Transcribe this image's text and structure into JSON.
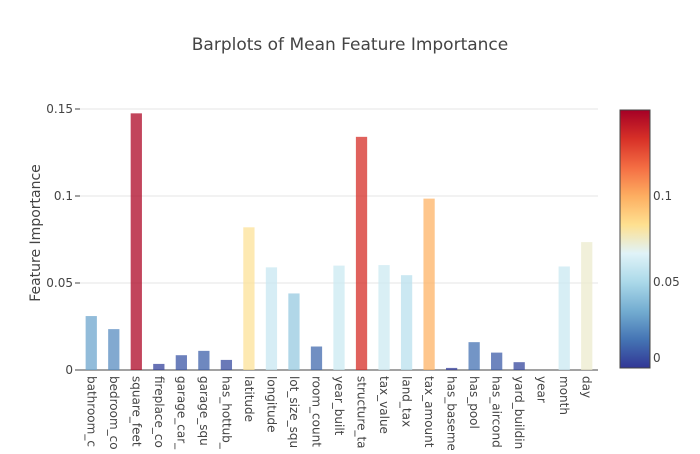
{
  "chart_data": {
    "type": "bar",
    "title": "Barplots of Mean Feature Importance",
    "xlabel": "",
    "ylabel": "Feature Importance",
    "ylim": [
      0,
      0.15
    ],
    "grid": true,
    "yticks": [
      {
        "value": 0,
        "label": "0"
      },
      {
        "value": 0.05,
        "label": "0.05"
      },
      {
        "value": 0.1,
        "label": "0.1"
      },
      {
        "value": 0.15,
        "label": "0.15"
      }
    ],
    "categories": [
      "bathroom_c",
      "bedroom_co",
      "square_feet",
      "fireplace_co",
      "garage_car_",
      "garage_squ",
      "has_hottub_",
      "latitude",
      "longitude",
      "lot_size_squ",
      "room_count",
      "year_built",
      "structure_ta",
      "tax_value",
      "land_tax",
      "tax_amount",
      "has_baseme",
      "has_pool",
      "has_aircond",
      "yard_buildin",
      "year",
      "month",
      "day"
    ],
    "values": [
      0.031,
      0.0235,
      0.1475,
      0.0035,
      0.0085,
      0.011,
      0.0058,
      0.082,
      0.059,
      0.044,
      0.0135,
      0.06,
      0.134,
      0.0603,
      0.0545,
      0.0985,
      0.0012,
      0.016,
      0.01,
      0.0045,
      0.0,
      0.0595,
      0.0735
    ],
    "colorscale": {
      "name": "RdYlBu",
      "range": [
        0,
        0.15
      ],
      "stops": [
        "#313695",
        "#4575b4",
        "#74add1",
        "#abd9e9",
        "#e0f3f8",
        "#fee090",
        "#fdae61",
        "#f46d43",
        "#d73027",
        "#a50026"
      ],
      "ticks": [
        {
          "value": 0,
          "label": "0"
        },
        {
          "value": 0.05,
          "label": "0.05"
        },
        {
          "value": 0.1,
          "label": "0.1"
        }
      ]
    },
    "legend": "none"
  }
}
